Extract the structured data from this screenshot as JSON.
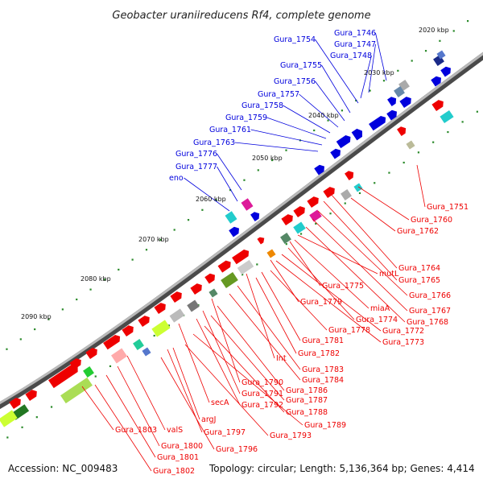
{
  "title": "Geobacter uraniireducens Rf4, complete genome",
  "footer": {
    "accession": "Accession: NC_009483",
    "topology": "Topology: circular; Length: 5,136,364 bp; Genes: 4,414"
  },
  "ticks": [
    "2020 kbp",
    "2030 kbp",
    "2040 kbp",
    "2050 kbp",
    "2060 kbp",
    "2070 kbp",
    "2080 kbp",
    "2090 kbp"
  ],
  "colors": {
    "forward": "#0000dd",
    "reverse": "#ee0000",
    "backbone": "#888888",
    "tick_dot": "#2a8a2a"
  },
  "forward_genes": [
    "Gura_1746",
    "Gura_1747",
    "Gura_1748",
    "Gura_1754",
    "Gura_1755",
    "Gura_1756",
    "Gura_1757",
    "Gura_1758",
    "Gura_1759",
    "Gura_1761",
    "Gura_1763",
    "Gura_1776",
    "Gura_1777",
    "eno"
  ],
  "reverse_genes": [
    "Gura_1751",
    "Gura_1760",
    "Gura_1762",
    "Gura_1764",
    "Gura_1765",
    "Gura_1766",
    "Gura_1767",
    "Gura_1768",
    "mutL",
    "Gura_1775",
    "miaA",
    "Gura_1774",
    "Gura_1772",
    "Gura_1773",
    "Gura_1779",
    "Gura_1778",
    "Gura_1781",
    "Gura_1782",
    "Int",
    "Gura_1783",
    "Gura_1784",
    "Gura_1790",
    "Gura_1786",
    "Gura_1791",
    "Gura_1787",
    "Gura_1792",
    "Gura_1788",
    "secA",
    "Gura_1789",
    "argJ",
    "Gura_1793",
    "Gura_1797",
    "Gura_1796",
    "Gura_1803",
    "valS",
    "Gura_1800",
    "Gura_1801",
    "Gura_1802"
  ]
}
